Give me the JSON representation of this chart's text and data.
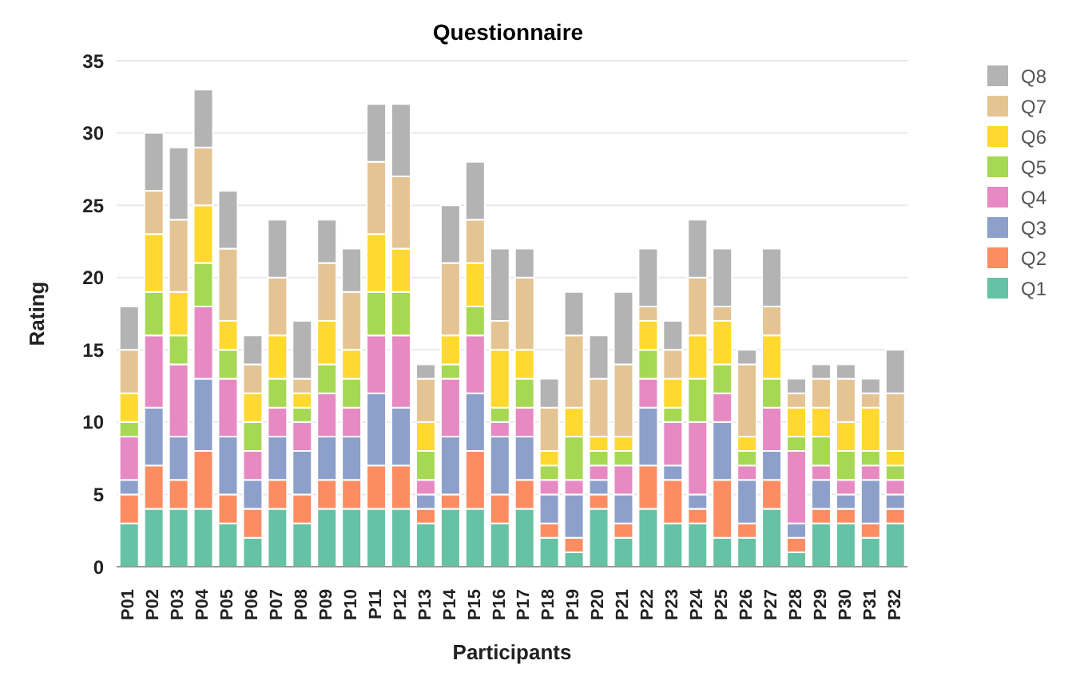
{
  "chart_data": {
    "type": "bar",
    "title": "Questionnaire",
    "xlabel": "Participants",
    "ylabel": "Rating",
    "stacked": true,
    "grid": "y",
    "legend": "top right",
    "categories": [
      "P01",
      "P02",
      "P03",
      "P04",
      "P05",
      "P06",
      "P07",
      "P08",
      "P09",
      "P10",
      "P11",
      "P12",
      "P13",
      "P14",
      "P15",
      "P16",
      "P17",
      "P18",
      "P19",
      "P20",
      "P21",
      "P22",
      "P23",
      "P24",
      "P25",
      "P26",
      "P27",
      "P28",
      "P29",
      "P30",
      "P31",
      "P32"
    ],
    "ylim": [
      0,
      35
    ],
    "yticks": [
      0,
      5,
      10,
      15,
      20,
      25,
      30,
      35
    ],
    "series": [
      {
        "name": "Q1",
        "color": "#66c2a5",
        "values": [
          3,
          4,
          4,
          4,
          3,
          2,
          4,
          3,
          4,
          4,
          4,
          4,
          3,
          4,
          4,
          3,
          4,
          2,
          1,
          4,
          2,
          4,
          3,
          3,
          2,
          2,
          4,
          1,
          3,
          3,
          2,
          3
        ]
      },
      {
        "name": "Q2",
        "color": "#fc8d62",
        "values": [
          2,
          3,
          2,
          4,
          2,
          2,
          2,
          2,
          2,
          2,
          3,
          3,
          1,
          1,
          4,
          2,
          2,
          1,
          1,
          1,
          1,
          3,
          3,
          1,
          4,
          1,
          2,
          1,
          1,
          1,
          1,
          1
        ]
      },
      {
        "name": "Q3",
        "color": "#8da0cb",
        "values": [
          1,
          4,
          3,
          5,
          4,
          2,
          3,
          3,
          3,
          3,
          5,
          4,
          1,
          4,
          4,
          4,
          3,
          2,
          3,
          1,
          2,
          4,
          1,
          1,
          4,
          3,
          2,
          1,
          2,
          1,
          3,
          1
        ]
      },
      {
        "name": "Q4",
        "color": "#e78ac3",
        "values": [
          3,
          5,
          5,
          5,
          4,
          2,
          2,
          2,
          3,
          2,
          4,
          5,
          1,
          4,
          4,
          1,
          2,
          1,
          1,
          1,
          2,
          2,
          3,
          5,
          2,
          1,
          3,
          5,
          1,
          1,
          1,
          1
        ]
      },
      {
        "name": "Q5",
        "color": "#a6d854",
        "values": [
          1,
          3,
          2,
          3,
          2,
          2,
          2,
          1,
          2,
          2,
          3,
          3,
          2,
          1,
          2,
          1,
          2,
          1,
          3,
          1,
          1,
          2,
          1,
          3,
          2,
          1,
          2,
          1,
          2,
          2,
          1,
          1
        ]
      },
      {
        "name": "Q6",
        "color": "#ffd92f",
        "values": [
          2,
          4,
          3,
          4,
          2,
          2,
          3,
          1,
          3,
          2,
          4,
          3,
          2,
          2,
          3,
          4,
          2,
          1,
          2,
          1,
          1,
          2,
          2,
          3,
          3,
          1,
          3,
          2,
          2,
          2,
          3,
          1
        ]
      },
      {
        "name": "Q7",
        "color": "#e5c494",
        "values": [
          3,
          3,
          5,
          4,
          5,
          2,
          4,
          1,
          4,
          4,
          5,
          5,
          3,
          5,
          3,
          2,
          5,
          3,
          5,
          4,
          5,
          1,
          2,
          4,
          1,
          5,
          2,
          1,
          2,
          3,
          1,
          4
        ]
      },
      {
        "name": "Q8",
        "color": "#b3b3b3",
        "values": [
          3,
          4,
          5,
          4,
          4,
          2,
          4,
          4,
          3,
          3,
          4,
          5,
          1,
          4,
          4,
          5,
          2,
          2,
          3,
          3,
          5,
          4,
          2,
          4,
          4,
          1,
          4,
          1,
          1,
          1,
          1,
          3
        ]
      }
    ]
  }
}
